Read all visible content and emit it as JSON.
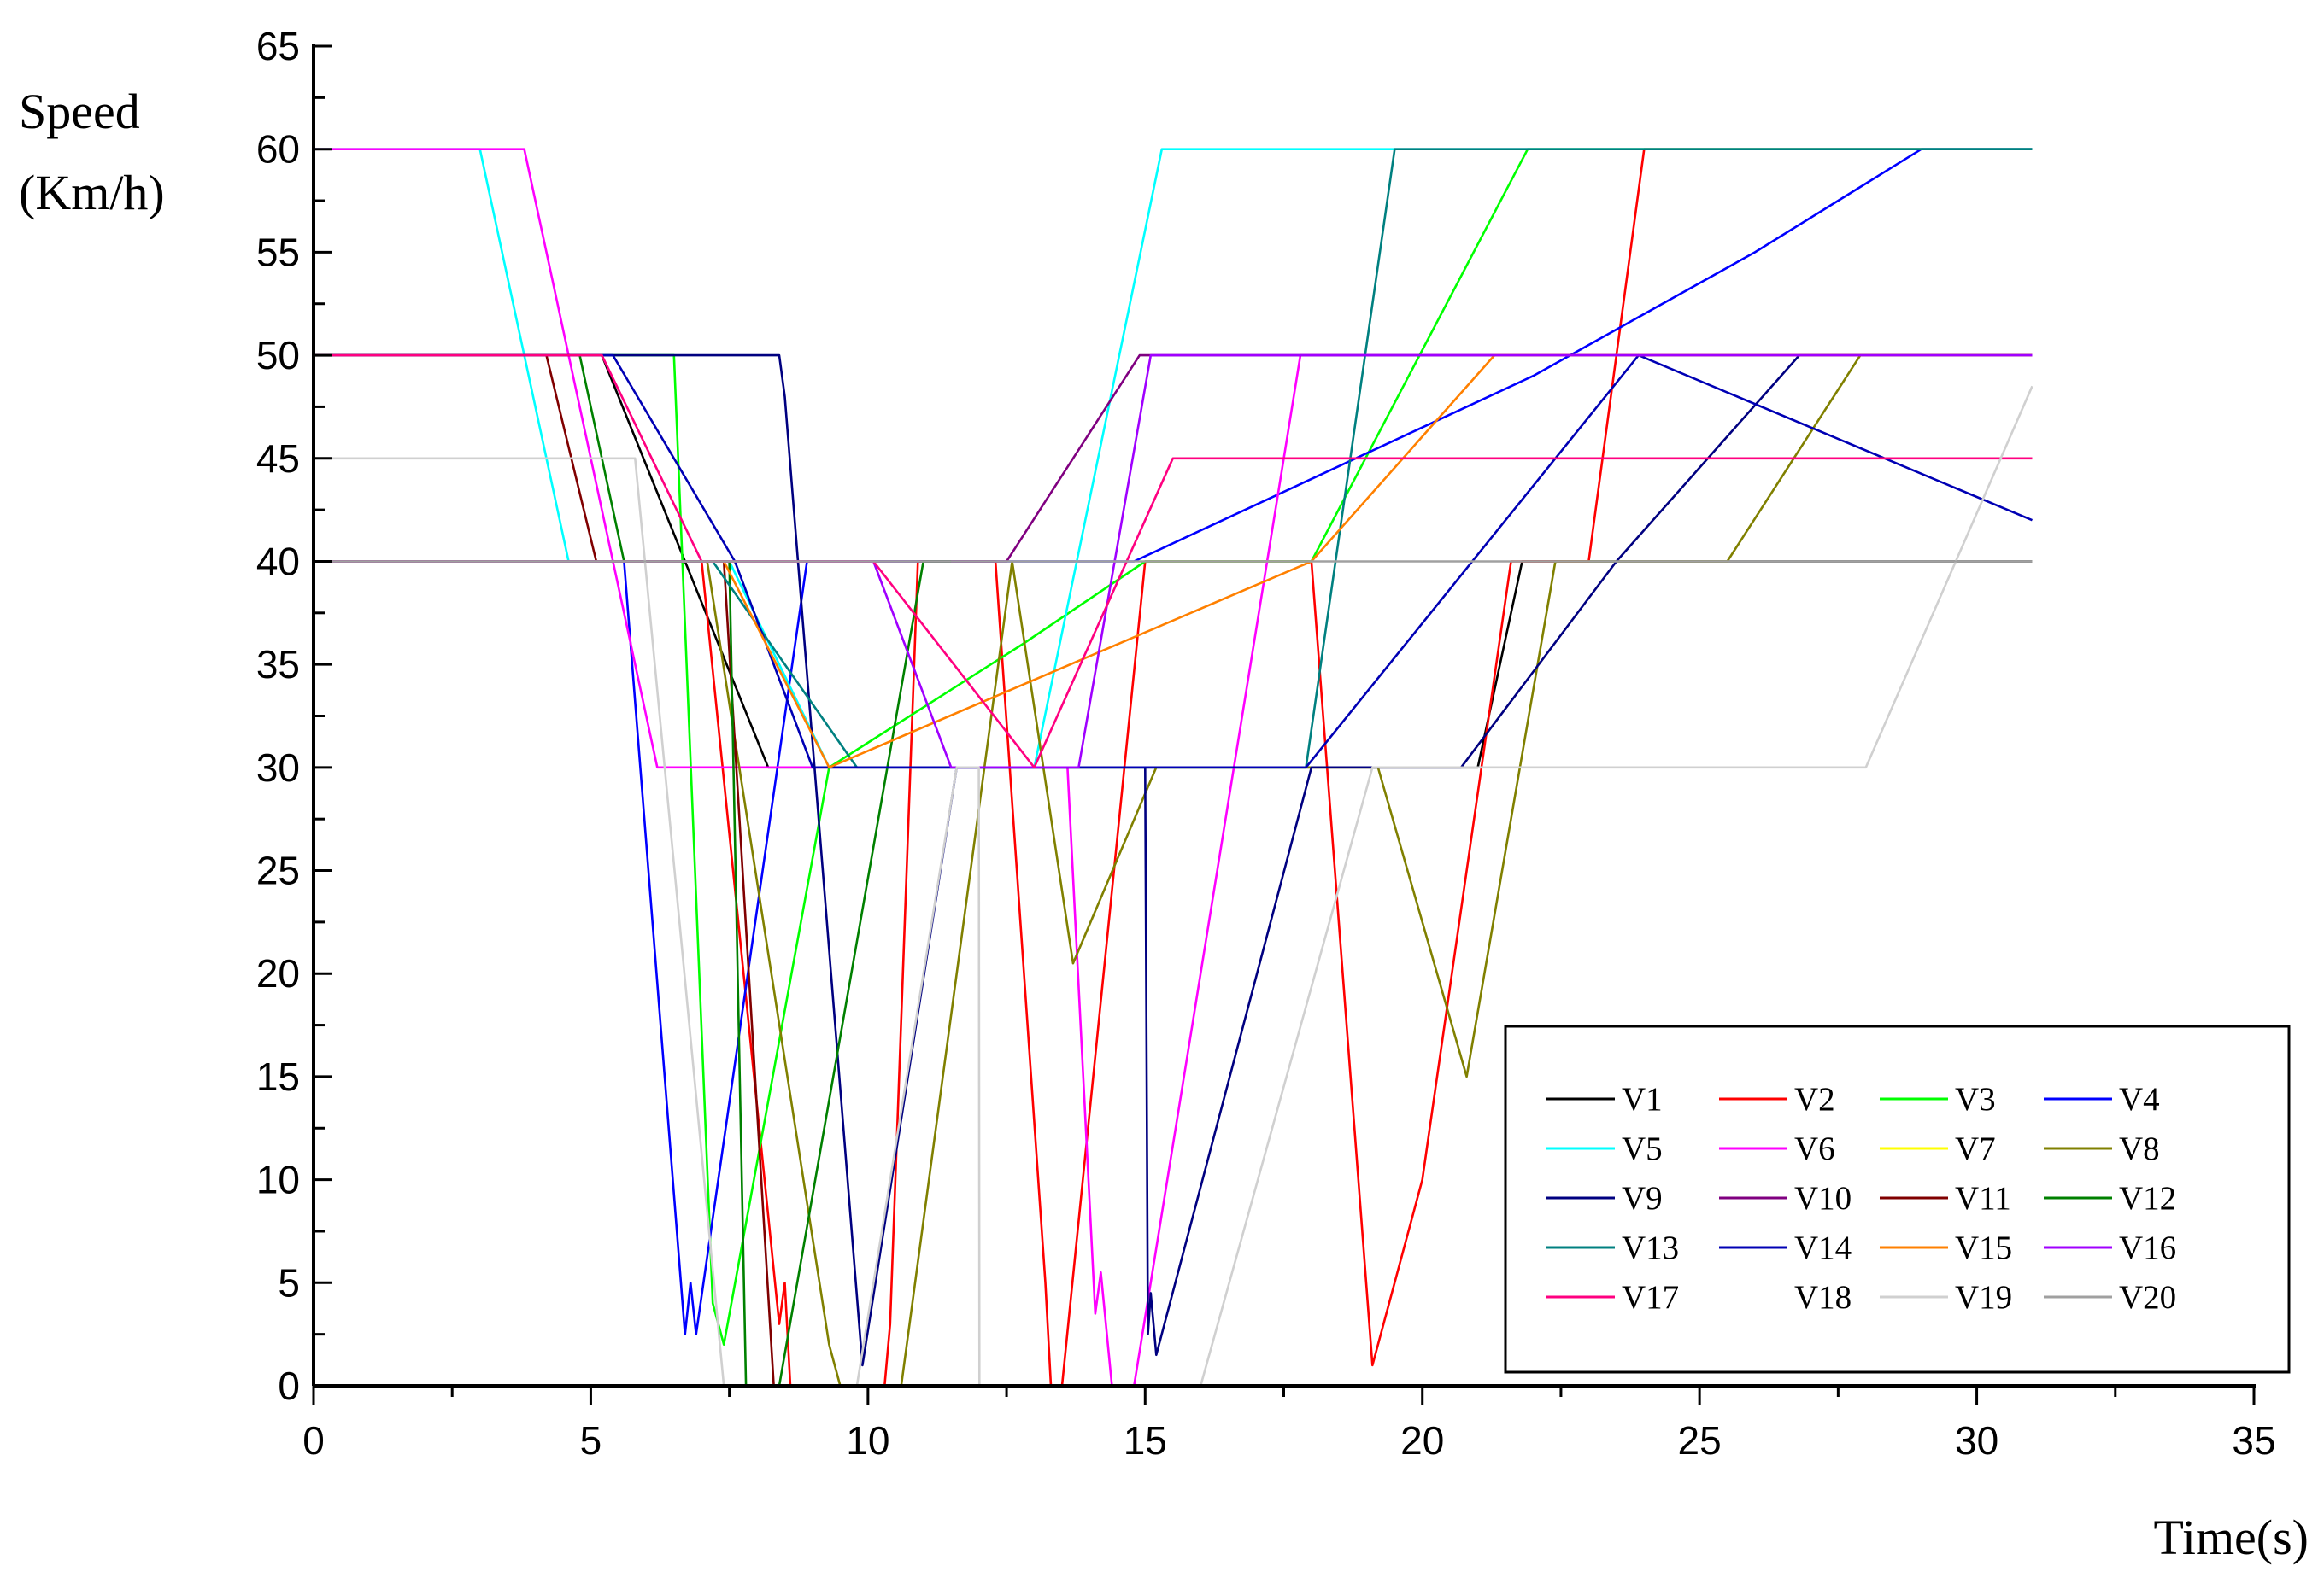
{
  "chart_data": {
    "type": "line",
    "xlabel": "Time(s)",
    "ylabel_line1": "Speed",
    "ylabel_line2": "(Km/h)",
    "xlim": [
      0,
      35
    ],
    "ylim": [
      0,
      65
    ],
    "x_ticks": [
      "0",
      "5",
      "10",
      "15",
      "20",
      "25",
      "30",
      "35"
    ],
    "y_ticks": [
      "0",
      "5",
      "10",
      "15",
      "20",
      "25",
      "30",
      "35",
      "40",
      "45",
      "50",
      "55",
      "60",
      "65"
    ],
    "grid": false,
    "legend_position": "bottom-right",
    "series": [
      {
        "name": "V1",
        "color": "#000000",
        "points": [
          [
            0,
            50
          ],
          [
            5.2,
            50
          ],
          [
            8.2,
            30
          ],
          [
            21,
            30
          ],
          [
            21.8,
            40
          ],
          [
            31,
            40
          ]
        ]
      },
      {
        "name": "V2",
        "color": "#ff0000",
        "points": [
          [
            0,
            40
          ],
          [
            7,
            40
          ],
          [
            8.4,
            3
          ],
          [
            8.5,
            5
          ],
          [
            8.6,
            0
          ],
          [
            10.3,
            0
          ],
          [
            10.4,
            3
          ],
          [
            10.9,
            40
          ],
          [
            12.3,
            40
          ],
          [
            13.2,
            5
          ],
          [
            13.3,
            0
          ],
          [
            13.5,
            0
          ],
          [
            15,
            40
          ],
          [
            18,
            40
          ],
          [
            19.1,
            1
          ],
          [
            20,
            10
          ],
          [
            21.6,
            40
          ],
          [
            23,
            40
          ],
          [
            24,
            60
          ],
          [
            31,
            60
          ]
        ]
      },
      {
        "name": "V3",
        "color": "#00ff00",
        "points": [
          [
            0,
            50
          ],
          [
            6.5,
            50
          ],
          [
            7.2,
            4
          ],
          [
            7.4,
            2
          ],
          [
            9.3,
            30
          ],
          [
            12.8,
            36
          ],
          [
            15,
            40
          ],
          [
            18,
            40
          ],
          [
            21.9,
            60
          ],
          [
            31,
            60
          ]
        ]
      },
      {
        "name": "V4",
        "color": "#0000ff",
        "points": [
          [
            0,
            40
          ],
          [
            5.6,
            40
          ],
          [
            6.7,
            2.5
          ],
          [
            6.8,
            5
          ],
          [
            6.9,
            2.5
          ],
          [
            8.9,
            40
          ],
          [
            14.8,
            40
          ],
          [
            18,
            44
          ],
          [
            22,
            49
          ],
          [
            26,
            55
          ],
          [
            29,
            60
          ],
          [
            31,
            60
          ]
        ]
      },
      {
        "name": "V5",
        "color": "#00ffff",
        "points": [
          [
            0,
            60
          ],
          [
            3,
            60
          ],
          [
            4.6,
            40
          ],
          [
            7.5,
            40
          ],
          [
            9.3,
            30
          ],
          [
            13,
            30
          ],
          [
            15.3,
            60
          ],
          [
            31,
            60
          ]
        ]
      },
      {
        "name": "V6",
        "color": "#ff00ff",
        "points": [
          [
            0,
            60
          ],
          [
            3.8,
            60
          ],
          [
            6.2,
            30
          ],
          [
            13.6,
            30
          ],
          [
            14.1,
            3.5
          ],
          [
            14.2,
            5.5
          ],
          [
            14.4,
            0
          ],
          [
            14.8,
            0
          ],
          [
            17.8,
            50
          ],
          [
            31,
            50
          ]
        ]
      },
      {
        "name": "V7",
        "color": "#ffff00",
        "points": []
      },
      {
        "name": "V8",
        "color": "#808000",
        "points": [
          [
            0,
            40
          ],
          [
            7.1,
            40
          ],
          [
            9.3,
            2
          ],
          [
            9.5,
            0
          ],
          [
            10.6,
            0
          ],
          [
            12.6,
            40
          ],
          [
            13.7,
            20.5
          ],
          [
            15.2,
            30
          ],
          [
            19.2,
            30
          ],
          [
            20.8,
            15
          ],
          [
            22.4,
            40
          ],
          [
            25.5,
            40
          ],
          [
            27.9,
            50
          ],
          [
            31,
            50
          ]
        ]
      },
      {
        "name": "V9",
        "color": "#000080",
        "points": [
          [
            0,
            50
          ],
          [
            8.4,
            50
          ],
          [
            8.5,
            48
          ],
          [
            9.9,
            1
          ],
          [
            11.6,
            30
          ],
          [
            15,
            30
          ],
          [
            15.05,
            2.5
          ],
          [
            15.1,
            4.5
          ],
          [
            15.2,
            1.5
          ],
          [
            18,
            30
          ],
          [
            19.1,
            30
          ],
          [
            20.7,
            30
          ],
          [
            23.5,
            40
          ],
          [
            26.8,
            50
          ],
          [
            31,
            50
          ]
        ]
      },
      {
        "name": "V10",
        "color": "#800080",
        "points": [
          [
            0,
            40
          ],
          [
            12.5,
            40
          ],
          [
            14.9,
            50
          ],
          [
            31,
            50
          ]
        ]
      },
      {
        "name": "V11",
        "color": "#800000",
        "points": [
          [
            0,
            50
          ],
          [
            4.2,
            50
          ],
          [
            5.1,
            40
          ],
          [
            7.4,
            40
          ],
          [
            8.3,
            0
          ]
        ]
      },
      {
        "name": "V12",
        "color": "#008000",
        "points": [
          [
            0,
            50
          ],
          [
            4.8,
            50
          ],
          [
            5.6,
            40
          ],
          [
            7.5,
            40
          ],
          [
            7.8,
            0
          ],
          [
            8.4,
            0
          ],
          [
            11,
            40
          ],
          [
            11.5,
            40
          ]
        ]
      },
      {
        "name": "V13",
        "color": "#008080",
        "points": [
          [
            0,
            40
          ],
          [
            7.2,
            40
          ],
          [
            9.8,
            30
          ],
          [
            17.9,
            30
          ],
          [
            19.5,
            60
          ],
          [
            31,
            60
          ]
        ]
      },
      {
        "name": "V14",
        "color": "#0000b4",
        "points": [
          [
            0,
            50
          ],
          [
            5.4,
            50
          ],
          [
            7.6,
            40
          ],
          [
            9,
            30
          ],
          [
            17.9,
            30
          ],
          [
            23.9,
            50
          ],
          [
            31,
            42
          ]
        ]
      },
      {
        "name": "V15",
        "color": "#ff8000",
        "points": [
          [
            0,
            40
          ],
          [
            7.4,
            40
          ],
          [
            9.3,
            30
          ],
          [
            18,
            40
          ],
          [
            21.3,
            50
          ],
          [
            31,
            50
          ]
        ]
      },
      {
        "name": "V16",
        "color": "#a000ff",
        "points": [
          [
            0,
            40
          ],
          [
            10.1,
            40
          ],
          [
            11.5,
            30
          ],
          [
            13.8,
            30
          ],
          [
            15.1,
            50
          ],
          [
            31,
            50
          ]
        ]
      },
      {
        "name": "V17",
        "color": "#ff0080",
        "points": [
          [
            0,
            50
          ],
          [
            5.2,
            50
          ],
          [
            7,
            40
          ],
          [
            10.1,
            40
          ],
          [
            13,
            30
          ],
          [
            15.5,
            45
          ],
          [
            31,
            45
          ]
        ]
      },
      {
        "name": "V18",
        "color": "#ffffff",
        "points": []
      },
      {
        "name": "V19",
        "color": "#d0d0d0",
        "points": [
          [
            0,
            45
          ],
          [
            5.8,
            45
          ],
          [
            7.4,
            0
          ],
          [
            9.8,
            0
          ],
          [
            11.6,
            30
          ],
          [
            12,
            30
          ],
          [
            12.01,
            0
          ],
          [
            16,
            0
          ],
          [
            19.1,
            30
          ],
          [
            28,
            30
          ],
          [
            31,
            48.5
          ]
        ]
      },
      {
        "name": "V20",
        "color": "#a0a0a0",
        "points": [
          [
            0,
            40
          ],
          [
            31,
            40
          ]
        ]
      }
    ]
  }
}
